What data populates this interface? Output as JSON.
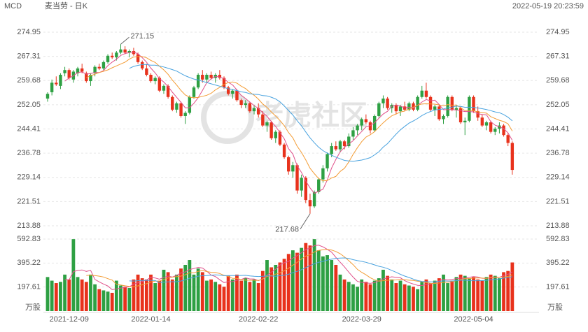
{
  "header": {
    "symbol": "MCD",
    "name": "麦当劳 - 日K",
    "timestamp": "2022-05-19 20:23:59"
  },
  "watermark": "老虎社区",
  "chart_data": [
    {
      "type": "candlestick",
      "categories": [
        null,
        null,
        null,
        null,
        null,
        "2021-12-09",
        null,
        null,
        null,
        null,
        null,
        null,
        null,
        null,
        null,
        null,
        null,
        null,
        null,
        null,
        null,
        null,
        null,
        null,
        "2022-01-14",
        null,
        null,
        null,
        null,
        null,
        null,
        null,
        null,
        null,
        null,
        null,
        null,
        null,
        null,
        null,
        null,
        null,
        null,
        null,
        null,
        null,
        null,
        null,
        null,
        "2022-02-22",
        null,
        null,
        null,
        null,
        null,
        null,
        null,
        null,
        null,
        null,
        null,
        null,
        null,
        null,
        null,
        null,
        null,
        null,
        null,
        null,
        null,
        null,
        null,
        "2022-03-29",
        null,
        null,
        null,
        null,
        null,
        null,
        null,
        null,
        null,
        null,
        null,
        null,
        null,
        null,
        null,
        null,
        null,
        null,
        null,
        null,
        null,
        null,
        null,
        null,
        null,
        "2022-05-04",
        null,
        null,
        null,
        null,
        null,
        null,
        null,
        null,
        null
      ],
      "open": [
        254,
        256,
        259,
        258,
        262,
        263,
        260,
        262,
        263.5,
        262,
        259.5,
        262,
        264,
        263.5,
        265.5,
        267.5,
        267,
        268.5,
        269.5,
        268.5,
        269,
        268,
        265.5,
        263.5,
        261.5,
        259.5,
        260.5,
        256.5,
        258,
        254.5,
        250.5,
        252.5,
        248.5,
        249.5,
        254.5,
        257.5,
        261.5,
        260,
        261.5,
        260.5,
        261.5,
        260.5,
        257.5,
        255.5,
        256.5,
        253.5,
        252,
        252.5,
        250,
        251,
        249,
        245.5,
        246.5,
        241.5,
        243.5,
        239.5,
        235.5,
        231,
        233,
        225,
        229,
        222,
        220,
        224.5,
        228.5,
        232,
        236.5,
        239,
        238,
        240.5,
        239,
        242,
        244,
        245.5,
        247.5,
        246.5,
        244,
        248.5,
        252.5,
        254,
        251,
        252,
        250,
        251.5,
        250.5,
        252.5,
        250.5,
        254.5,
        256.5,
        254.5,
        250.5,
        251.5,
        247.5,
        248.5,
        254.5,
        250.5,
        251,
        246.5,
        247,
        254.5,
        250,
        248,
        245.5,
        246.5,
        243.5,
        244.5,
        245.5,
        242.5,
        240
      ],
      "high": [
        256,
        260,
        261,
        262,
        264,
        263.5,
        263,
        264,
        265,
        262.5,
        262,
        264.5,
        265,
        266,
        268,
        268.5,
        269,
        271.15,
        270.5,
        269.5,
        270,
        268.5,
        266,
        265,
        262,
        261,
        261,
        258.5,
        258.5,
        255,
        253,
        253,
        250,
        255,
        258,
        262,
        263,
        262,
        262.5,
        262,
        263,
        261,
        258,
        257,
        257,
        254,
        253.5,
        253,
        252,
        252.5,
        250,
        247,
        247,
        244,
        244,
        240,
        236,
        234,
        233.5,
        230,
        229.5,
        224,
        225,
        229,
        233,
        237,
        240,
        240.5,
        241,
        241,
        243,
        245,
        246,
        248,
        249,
        247,
        249,
        253,
        255,
        254.5,
        252.5,
        252.5,
        252,
        253,
        253,
        253,
        255,
        258,
        259,
        255,
        252,
        252,
        249,
        255,
        255,
        252,
        251.5,
        248,
        255,
        255,
        251.5,
        249,
        247,
        247,
        245,
        246.5,
        246,
        243,
        240.5
      ],
      "low": [
        253,
        255,
        258,
        257,
        261,
        260,
        259,
        261,
        262,
        259,
        258,
        261,
        263,
        263,
        265,
        266.5,
        266,
        268,
        268,
        267,
        267.5,
        265,
        263,
        261,
        259,
        258.5,
        256,
        255.5,
        254,
        250,
        249.5,
        248,
        246,
        249,
        254,
        257,
        259,
        259,
        260,
        259,
        260,
        257,
        255,
        254,
        253,
        251,
        251,
        249.5,
        249,
        248,
        245,
        243.5,
        241,
        240,
        239,
        235,
        230,
        229,
        224,
        223,
        221,
        217.68,
        219.5,
        224,
        227.5,
        231,
        235.5,
        237.5,
        237,
        238,
        238.5,
        241,
        242.5,
        244,
        246,
        243,
        243.5,
        248,
        251,
        250.5,
        249.5,
        249,
        248.5,
        250,
        250,
        250,
        250,
        254,
        254,
        250,
        248.5,
        247,
        246,
        248,
        250,
        248,
        246,
        242.5,
        246.5,
        249.5,
        247,
        245,
        244,
        243,
        242.5,
        243,
        242,
        239,
        230
      ],
      "close": [
        255.5,
        259,
        258.5,
        261.5,
        263,
        260.5,
        262.5,
        263.5,
        262.5,
        259.5,
        261.5,
        264,
        263.5,
        265.5,
        267.5,
        267,
        268.5,
        269.5,
        268.5,
        269,
        268,
        265.5,
        263.5,
        261.5,
        259.5,
        260.5,
        256.5,
        258,
        254.5,
        250.5,
        252.5,
        248.5,
        249.5,
        254.5,
        257.5,
        261.5,
        260,
        261.5,
        260.5,
        261.5,
        260.5,
        257.5,
        255.5,
        256.5,
        253.5,
        252,
        252.5,
        250,
        251,
        249,
        245.5,
        246.5,
        241.5,
        243.5,
        239.5,
        235.5,
        231,
        233,
        225,
        229,
        222,
        220,
        224.5,
        228.5,
        232,
        236.5,
        239,
        238,
        240.5,
        239,
        242,
        244,
        245.5,
        247.5,
        246.5,
        244,
        248.5,
        252.5,
        254,
        251,
        252,
        250,
        251.5,
        250.5,
        252.5,
        250.5,
        254.5,
        256.5,
        254.5,
        250.5,
        251.5,
        247.5,
        248.5,
        254.5,
        250.5,
        251,
        246.5,
        247,
        254.5,
        250,
        248,
        245.5,
        246.5,
        243.5,
        244.5,
        245.5,
        242.5,
        240,
        231.5
      ],
      "up_color": "#2ea043",
      "down_color": "#e8321c",
      "ylim": [
        213.88,
        274.95
      ],
      "yticks": [
        274.95,
        267.31,
        259.68,
        252.05,
        244.41,
        236.78,
        229.14,
        221.51,
        213.88
      ],
      "grid": true
    },
    {
      "type": "bar",
      "unit": "万股",
      "values": [
        280,
        250,
        230,
        240,
        300,
        260,
        592,
        280,
        260,
        240,
        300,
        220,
        180,
        170,
        160,
        150,
        250,
        210,
        200,
        190,
        260,
        300,
        270,
        260,
        300,
        230,
        250,
        340,
        320,
        260,
        300,
        350,
        380,
        420,
        300,
        350,
        320,
        250,
        260,
        240,
        220,
        200,
        290,
        260,
        300,
        250,
        270,
        240,
        260,
        230,
        330,
        420,
        360,
        380,
        400,
        430,
        470,
        500,
        480,
        520,
        560,
        540,
        592,
        500,
        450,
        460,
        420,
        380,
        300,
        260,
        240,
        220,
        200,
        260,
        240,
        220,
        250,
        270,
        340,
        290,
        260,
        230,
        250,
        220,
        210,
        200,
        180,
        240,
        260,
        230,
        250,
        270,
        300,
        230,
        250,
        280,
        300,
        290,
        270,
        280,
        260,
        250,
        280,
        300,
        290,
        270,
        320,
        330,
        400
      ],
      "ylim": [
        0,
        592.83
      ],
      "yticks": [
        592.83,
        395.22,
        197.61
      ],
      "grid": true
    }
  ]
}
